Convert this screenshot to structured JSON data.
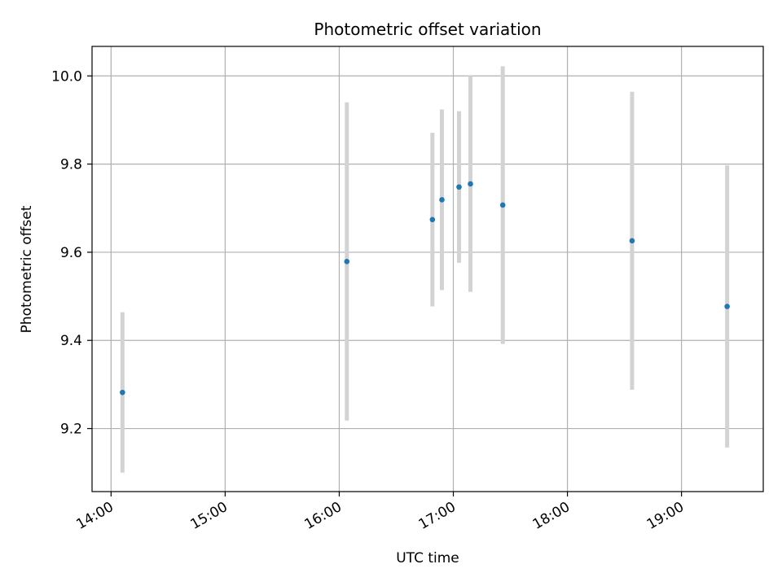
{
  "chart_data": {
    "type": "scatter",
    "title": "Photometric offset variation",
    "xlabel": "UTC time",
    "ylabel": "Photometric offset",
    "x_axis_kind": "time",
    "xlim": [
      "13:50",
      "19:43"
    ],
    "ylim": [
      9.057,
      10.067
    ],
    "x_ticks": [
      "14:00",
      "15:00",
      "16:00",
      "17:00",
      "18:00",
      "19:00"
    ],
    "y_ticks": [
      "9.2",
      "9.4",
      "9.6",
      "9.8",
      "10.0"
    ],
    "grid": true,
    "colors": {
      "point": "#1f77b4",
      "errorbar": "#d3d3d3",
      "grid": "#b0b0b0"
    },
    "points": [
      {
        "x": "14:06",
        "y": 9.282,
        "err": 0.182
      },
      {
        "x": "16:04",
        "y": 9.579,
        "err": 0.361
      },
      {
        "x": "16:49",
        "y": 9.674,
        "err": 0.197
      },
      {
        "x": "16:54",
        "y": 9.719,
        "err": 0.205
      },
      {
        "x": "17:03",
        "y": 9.748,
        "err": 0.172
      },
      {
        "x": "17:09",
        "y": 9.755,
        "err": 0.245
      },
      {
        "x": "17:26",
        "y": 9.707,
        "err": 0.315
      },
      {
        "x": "18:34",
        "y": 9.626,
        "err": 0.338
      },
      {
        "x": "19:24",
        "y": 9.477,
        "err": 0.32
      }
    ]
  }
}
